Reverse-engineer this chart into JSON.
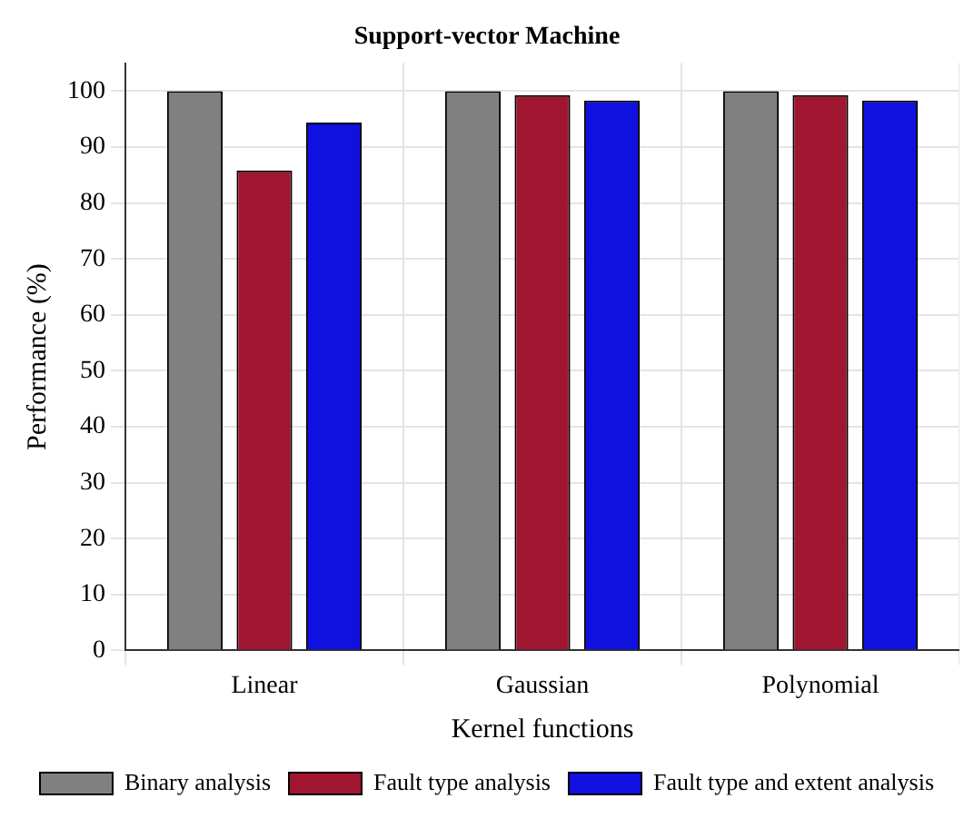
{
  "chart_data": {
    "type": "bar",
    "title": "Support-vector Machine",
    "xlabel": "Kernel functions",
    "ylabel": "Performance (%)",
    "categories": [
      "Linear",
      "Gaussian",
      "Polynomial"
    ],
    "series": [
      {
        "name": "Binary analysis",
        "color": "#808080",
        "values": [
          100,
          100,
          100
        ]
      },
      {
        "name": "Fault type analysis",
        "color": "#a01530",
        "values": [
          85.8,
          99.3,
          99.3
        ]
      },
      {
        "name": "Fault type and extent analysis",
        "color": "#1010e0",
        "values": [
          94.4,
          98.3,
          98.3
        ]
      }
    ],
    "ylim": [
      0,
      105
    ],
    "yticks": [
      0,
      10,
      20,
      30,
      40,
      50,
      60,
      70,
      80,
      90,
      100
    ],
    "grid": true,
    "legend": "bottom"
  }
}
